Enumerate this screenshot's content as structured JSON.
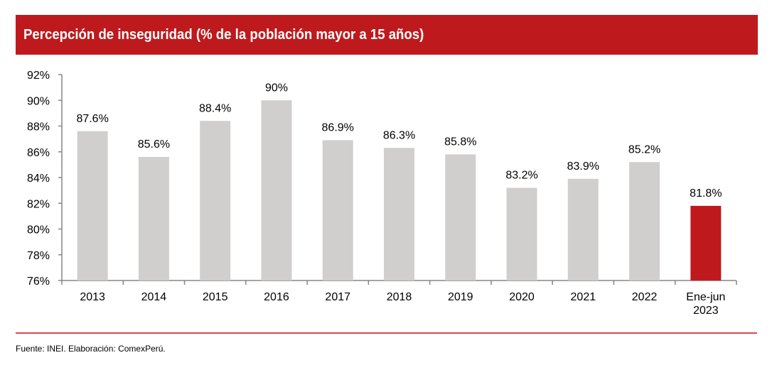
{
  "chart_data": {
    "type": "bar",
    "title": "Percepción de inseguridad (% de la población mayor a 15 años)",
    "xlabel": "",
    "ylabel": "",
    "categories": [
      "2013",
      "2014",
      "2015",
      "2016",
      "2017",
      "2018",
      "2019",
      "2020",
      "2021",
      "2022",
      "Ene-jun\n2023"
    ],
    "values": [
      87.6,
      85.6,
      88.4,
      90.0,
      86.9,
      86.3,
      85.8,
      83.2,
      83.9,
      85.2,
      81.8
    ],
    "data_labels": [
      "87.6%",
      "85.6%",
      "88.4%",
      "90%",
      "86.9%",
      "86.3%",
      "85.8%",
      "83.2%",
      "83.9%",
      "85.2%",
      "81.8%"
    ],
    "highlight_index": 10,
    "ylim": [
      76,
      92
    ],
    "yticks": [
      76,
      78,
      80,
      82,
      84,
      86,
      88,
      90,
      92
    ],
    "ytick_labels": [
      "76%",
      "78%",
      "80%",
      "82%",
      "84%",
      "86%",
      "88%",
      "90%",
      "92%"
    ],
    "grid": false,
    "legend": "none",
    "colors": {
      "bar": "#D0CFCE",
      "highlight": "#BE1A1D",
      "axis": "#868686",
      "banner": "#BE1A1D",
      "rule": "#E0484D"
    }
  },
  "footer": {
    "source": "Fuente: INEI. Elaboración: ComexPerú."
  }
}
